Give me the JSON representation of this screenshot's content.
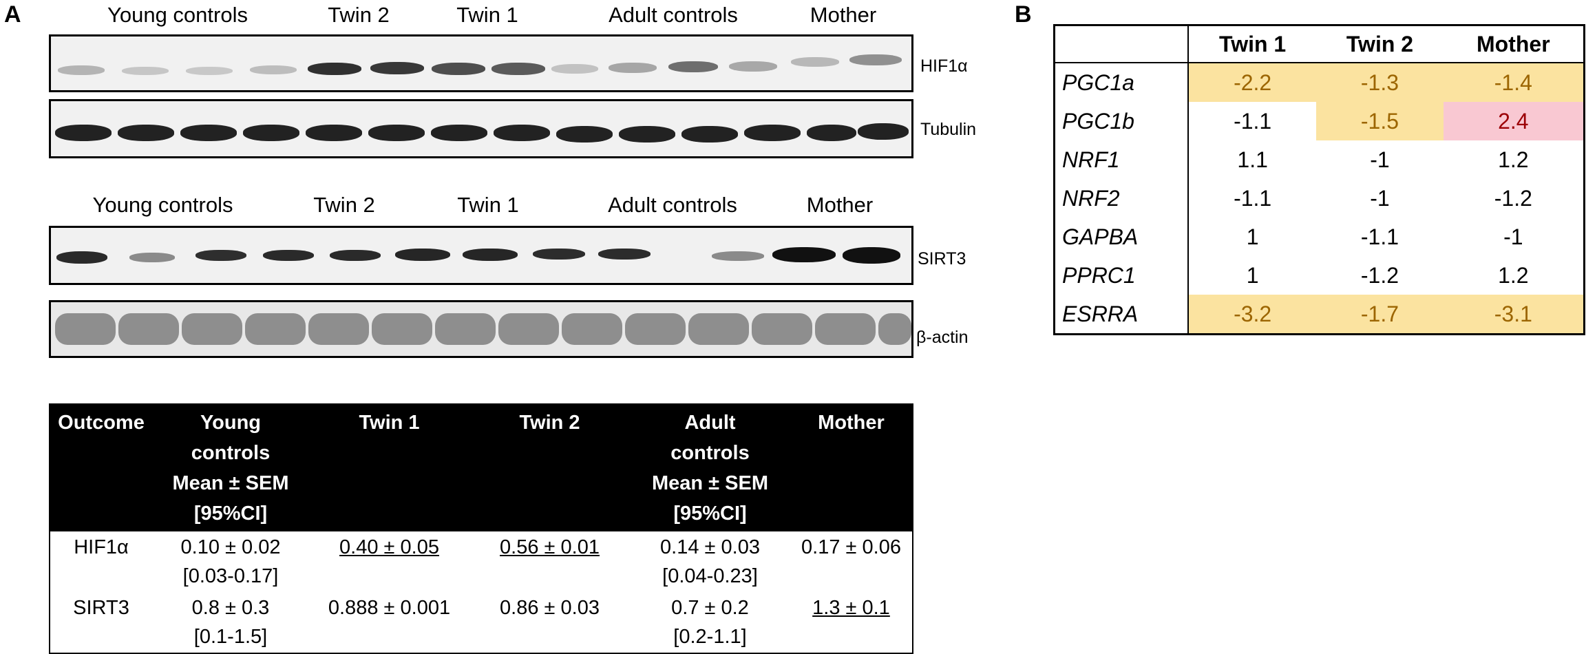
{
  "panel_a": {
    "letter": "A",
    "blot1": {
      "groups": [
        "Young controls",
        "Twin 2",
        "Twin 1",
        "Adult controls",
        "Mother"
      ],
      "labels": [
        "HIF1α",
        "Tubulin"
      ]
    },
    "blot2": {
      "groups": [
        "Young controls",
        "Twin 2",
        "Twin 1",
        "Adult controls",
        "Mother"
      ],
      "labels": [
        "SIRT3",
        "β-actin"
      ]
    },
    "table": {
      "headers": [
        "Outcome",
        "Young controls Mean ± SEM [95%CI]",
        "Twin 1",
        "Twin 2",
        "Adult controls Mean ± SEM [95%CI]",
        "Mother"
      ],
      "header_lines": [
        [
          "Outcome"
        ],
        [
          "Young",
          "controls",
          "Mean ± SEM",
          "[95%CI]"
        ],
        [
          "Twin 1"
        ],
        [
          "Twin 2"
        ],
        [
          "Adult",
          "controls",
          "Mean ± SEM",
          "[95%CI]"
        ],
        [
          "Mother"
        ]
      ],
      "rows": [
        {
          "outcome": "HIF1α",
          "young": "0.10 ± 0.02",
          "young_ci": "[0.03-0.17]",
          "twin1": "0.40 ± 0.05",
          "twin2": "0.56 ± 0.01",
          "adult": "0.14 ± 0.03",
          "adult_ci": "[0.04-0.23]",
          "mother": "0.17 ± 0.06"
        },
        {
          "outcome": "SIRT3",
          "young": "0.8 ± 0.3",
          "young_ci": "[0.1-1.5]",
          "twin1": "0.888 ± 0.001",
          "twin2": "0.86 ± 0.03",
          "adult": "0.7 ± 0.2",
          "adult_ci": "[0.2-1.1]",
          "mother": "1.3 ± 0.1"
        }
      ]
    }
  },
  "panel_b": {
    "letter": "B",
    "columns": [
      "Twin 1",
      "Twin 2",
      "Mother"
    ],
    "rows": [
      {
        "gene": "PGC1a",
        "values": [
          "-2.2",
          "-1.3",
          "-1.4"
        ],
        "colors": [
          "#fbe3a0",
          "#fbe3a0",
          "#fbe3a0"
        ]
      },
      {
        "gene": "PGC1b",
        "values": [
          "-1.1",
          "-1.5",
          "2.4"
        ],
        "colors": [
          "#ffffff",
          "#fbe3a0",
          "#f9c8d2"
        ]
      },
      {
        "gene": "NRF1",
        "values": [
          "1.1",
          "-1",
          "1.2"
        ],
        "colors": [
          "#ffffff",
          "#ffffff",
          "#ffffff"
        ]
      },
      {
        "gene": "NRF2",
        "values": [
          "-1.1",
          "-1",
          "-1.2"
        ],
        "colors": [
          "#ffffff",
          "#ffffff",
          "#ffffff"
        ]
      },
      {
        "gene": "GAPBA",
        "values": [
          "1",
          "-1.1",
          "-1"
        ],
        "colors": [
          "#ffffff",
          "#ffffff",
          "#ffffff"
        ]
      },
      {
        "gene": "PPRC1",
        "values": [
          "1",
          "-1.2",
          "1.2"
        ],
        "colors": [
          "#ffffff",
          "#ffffff",
          "#ffffff"
        ]
      },
      {
        "gene": "ESRRA",
        "values": [
          "-3.2",
          "-1.7",
          "-3.1"
        ],
        "colors": [
          "#fbe3a0",
          "#fbe3a0",
          "#fbe3a0"
        ]
      }
    ],
    "text_colors": {
      "down": "#9c6500",
      "up": "#9c0006",
      "neutral": "#000000"
    }
  }
}
